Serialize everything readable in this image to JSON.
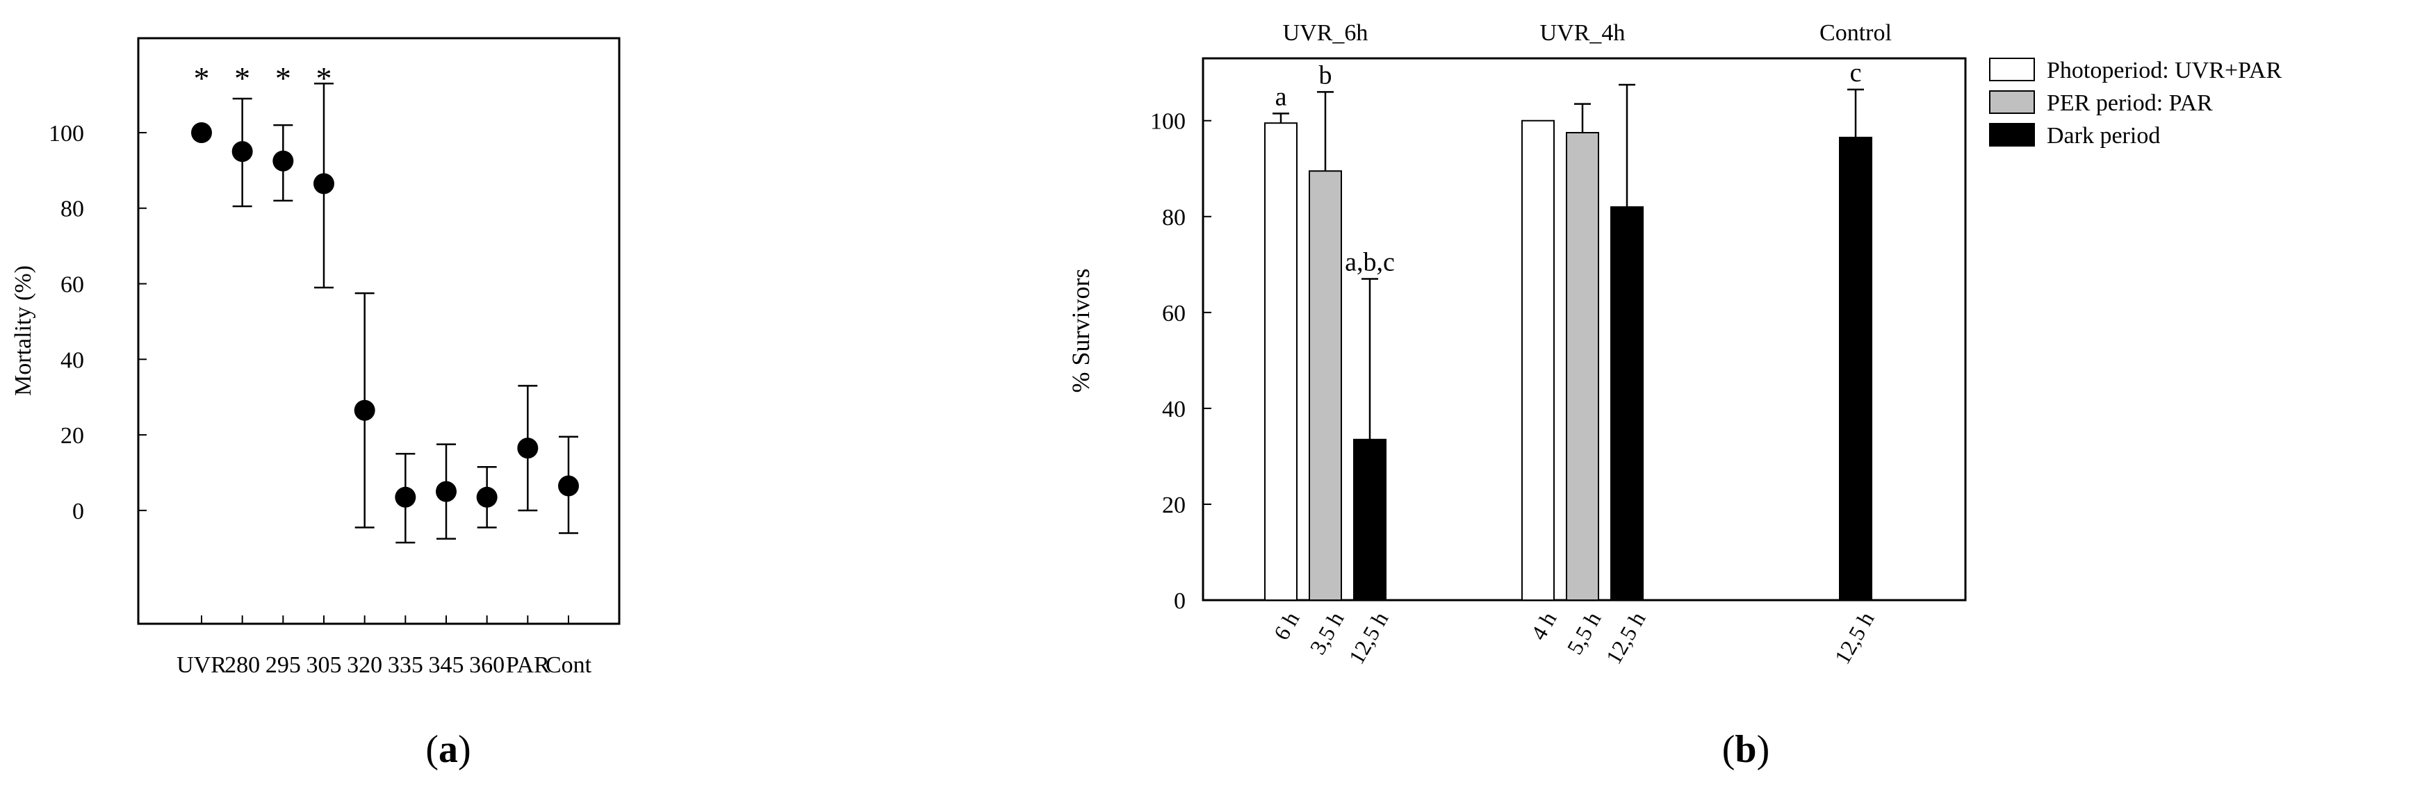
{
  "chart_data": [
    {
      "panel": "a",
      "type": "scatter",
      "xlabel": "",
      "ylabel": "Mortality (%)",
      "ylim": [
        -30,
        125
      ],
      "yticks": [
        0,
        20,
        40,
        60,
        80,
        100
      ],
      "ytick_labels": [
        "0",
        "20",
        "40",
        "60",
        "80",
        "100"
      ],
      "categories": [
        "UVR",
        "280",
        "295",
        "305",
        "320",
        "335",
        "345",
        "360",
        "PAR",
        "Cont"
      ],
      "values": [
        100,
        95,
        92.5,
        86.5,
        26.5,
        3.5,
        5,
        3.5,
        16.5,
        6.5
      ],
      "error_upper": [
        100,
        109,
        102,
        113,
        57.5,
        15,
        17.5,
        11.5,
        33,
        19.5
      ],
      "error_lower": [
        100,
        80.5,
        82,
        59,
        -4.5,
        -8.5,
        -7.5,
        -4.5,
        0,
        -6
      ],
      "significance": [
        "*",
        "*",
        "*",
        "*",
        "",
        "",
        "",
        "",
        "",
        ""
      ],
      "caption": "(a)",
      "caption_letter": "a",
      "grid": false
    },
    {
      "panel": "b",
      "type": "bar",
      "xlabel": "",
      "ylabel": "% Survivors",
      "ylim": [
        0,
        113
      ],
      "yticks": [
        0,
        20,
        40,
        60,
        80,
        100
      ],
      "ytick_labels": [
        "0",
        "20",
        "40",
        "60",
        "80",
        "100"
      ],
      "groups": [
        {
          "title": "UVR_6h",
          "bars": [
            {
              "label": "6 h",
              "series": "Photoperiod: UVR+PAR",
              "value": 99.5,
              "err": 2,
              "annotation": "a"
            },
            {
              "label": "3,5 h",
              "series": "PER period: PAR",
              "value": 89.5,
              "err": 16.5,
              "annotation": "b"
            },
            {
              "label": "12,5 h",
              "series": "Dark period",
              "value": 33.5,
              "err": 33.5,
              "annotation": "a,b,c"
            }
          ]
        },
        {
          "title": "UVR_4h",
          "bars": [
            {
              "label": "4 h",
              "series": "Photoperiod: UVR+PAR",
              "value": 100,
              "err": 0,
              "annotation": ""
            },
            {
              "label": "5,5 h",
              "series": "PER period: PAR",
              "value": 97.5,
              "err": 6,
              "annotation": ""
            },
            {
              "label": "12,5 h",
              "series": "Dark period",
              "value": 82,
              "err": 25.5,
              "annotation": ""
            }
          ]
        },
        {
          "title": "Control",
          "bars": [
            {
              "label": "12,5 h",
              "series": "Dark period",
              "value": 96.5,
              "err": 10,
              "annotation": "c"
            }
          ]
        }
      ],
      "legend": [
        {
          "name": "Photoperiod: UVR+PAR",
          "color": "#ffffff"
        },
        {
          "name": "PER period: PAR",
          "color": "#c0c0c0"
        },
        {
          "name": "Dark period",
          "color": "#000000"
        }
      ],
      "legend_position": "top-right outside",
      "caption": "(b)",
      "caption_letter": "b",
      "grid": false
    }
  ]
}
